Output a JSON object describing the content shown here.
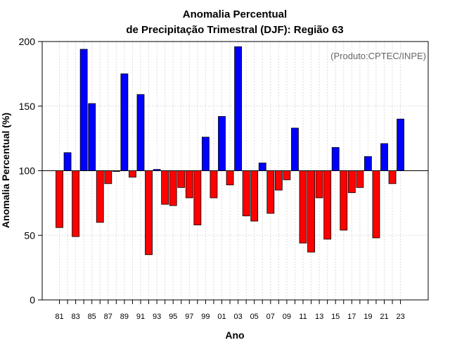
{
  "chart_data": {
    "type": "bar",
    "title_line1": "Anomalia Percentual",
    "title_line2": "de Precipitação Trimestral (DJF): Região 63",
    "xlabel": "Ano",
    "ylabel": "Anomalia Percentual (%)",
    "credit": "(Produto:CPTEC/INPE)",
    "ylim": [
      0,
      200
    ],
    "baseline": 100,
    "yticks": [
      0,
      50,
      100,
      150,
      200
    ],
    "xtick_labels": [
      "81",
      "83",
      "85",
      "87",
      "89",
      "91",
      "93",
      "95",
      "97",
      "99",
      "01",
      "03",
      "05",
      "07",
      "09",
      "11",
      "13",
      "15",
      "17",
      "19",
      "21",
      "23"
    ],
    "categories": [
      "1981",
      "1982",
      "1983",
      "1984",
      "1985",
      "1986",
      "1987",
      "1988",
      "1989",
      "1990",
      "1991",
      "1992",
      "1993",
      "1994",
      "1995",
      "1996",
      "1997",
      "1998",
      "1999",
      "2000",
      "2001",
      "2002",
      "2003",
      "2004",
      "2005",
      "2006",
      "2007",
      "2008",
      "2009",
      "2010",
      "2011",
      "2012",
      "2013",
      "2014",
      "2015",
      "2016",
      "2017",
      "2018",
      "2019",
      "2020",
      "2021",
      "2022",
      "2023"
    ],
    "values": [
      56,
      114,
      49,
      194,
      152,
      60,
      90,
      100,
      175,
      95,
      159,
      35,
      101,
      74,
      73,
      87,
      79,
      58,
      126,
      79,
      142,
      89,
      196,
      65,
      61,
      106,
      67,
      85,
      93,
      133,
      44,
      37,
      79,
      47,
      118,
      54,
      83,
      87,
      111,
      48,
      121,
      90,
      140
    ],
    "above_color": "#0000ff",
    "below_color": "#ff0000"
  }
}
